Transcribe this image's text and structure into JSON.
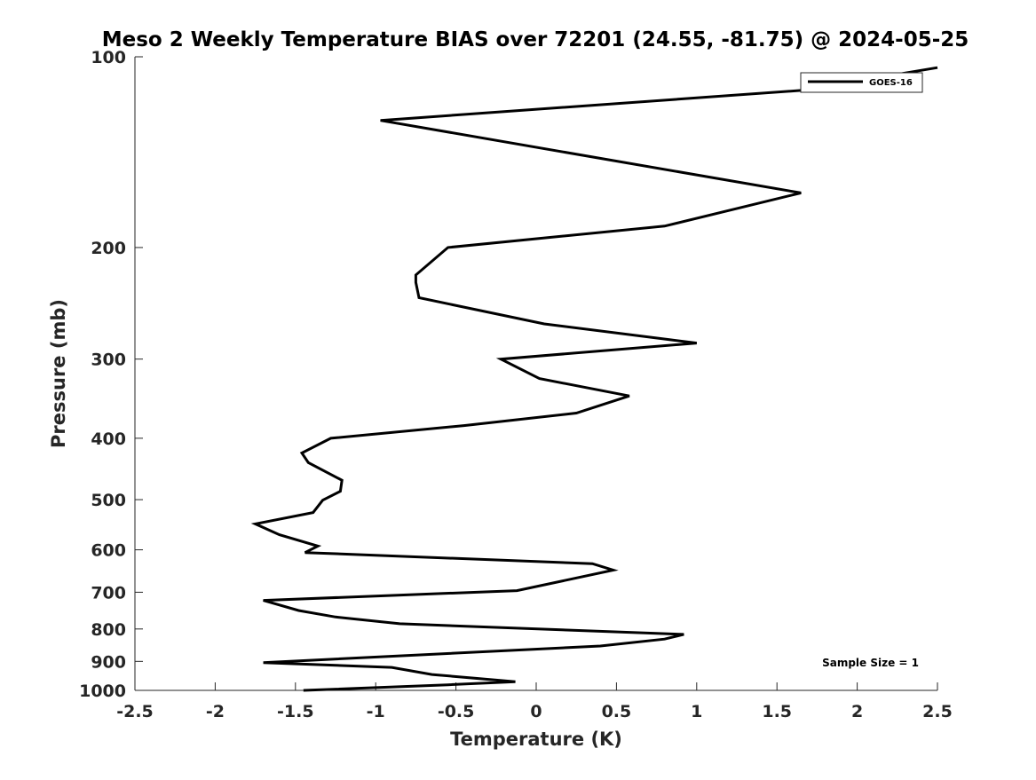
{
  "chart_data": {
    "type": "line",
    "title": "Meso 2 Weekly Temperature BIAS over 72201 (24.55, -81.75) @ 2024-05-25",
    "xlabel": "Temperature (K)",
    "ylabel": "Pressure (mb)",
    "xlim": [
      -2.5,
      2.5
    ],
    "ylim": [
      100,
      1000
    ],
    "y_scale": "log",
    "y_reversed": true,
    "x_ticks": [
      -2.5,
      -2,
      -1.5,
      -1,
      -0.5,
      0,
      0.5,
      1,
      1.5,
      2,
      2.5
    ],
    "x_tick_labels": [
      "-2.5",
      "-2",
      "-1.5",
      "-1",
      "-0.5",
      "0",
      "0.5",
      "1",
      "1.5",
      "2",
      "2.5"
    ],
    "y_ticks": [
      100,
      200,
      300,
      400,
      500,
      600,
      700,
      800,
      900,
      1000
    ],
    "y_tick_labels": [
      "100",
      "200",
      "300",
      "400",
      "500",
      "600",
      "700",
      "800",
      "900",
      "1000"
    ],
    "grid": false,
    "legend": {
      "position": "top-right",
      "entries": [
        "GOES-16"
      ]
    },
    "annotations": [
      "Sample Size = 1"
    ],
    "series": [
      {
        "name": "GOES-16",
        "color": "#000000",
        "points": [
          {
            "x": 2.5,
            "y": 104
          },
          {
            "x": 1.65,
            "y": 113
          },
          {
            "x": -0.97,
            "y": 126
          },
          {
            "x": 1.65,
            "y": 164
          },
          {
            "x": 0.8,
            "y": 185
          },
          {
            "x": -0.55,
            "y": 200
          },
          {
            "x": -0.75,
            "y": 221
          },
          {
            "x": -0.75,
            "y": 225
          },
          {
            "x": -0.75,
            "y": 227
          },
          {
            "x": -0.73,
            "y": 240
          },
          {
            "x": 0.05,
            "y": 264
          },
          {
            "x": 1.0,
            "y": 283
          },
          {
            "x": -0.22,
            "y": 300
          },
          {
            "x": 0.02,
            "y": 322
          },
          {
            "x": 0.58,
            "y": 343
          },
          {
            "x": 0.25,
            "y": 365
          },
          {
            "x": -0.45,
            "y": 382
          },
          {
            "x": -1.28,
            "y": 400
          },
          {
            "x": -1.46,
            "y": 422
          },
          {
            "x": -1.42,
            "y": 437
          },
          {
            "x": -1.21,
            "y": 466
          },
          {
            "x": -1.22,
            "y": 485
          },
          {
            "x": -1.33,
            "y": 501
          },
          {
            "x": -1.39,
            "y": 524
          },
          {
            "x": -1.75,
            "y": 546
          },
          {
            "x": -1.6,
            "y": 568
          },
          {
            "x": -1.36,
            "y": 592
          },
          {
            "x": -1.44,
            "y": 606
          },
          {
            "x": 0.35,
            "y": 631
          },
          {
            "x": 0.48,
            "y": 646
          },
          {
            "x": -0.12,
            "y": 696
          },
          {
            "x": -1.7,
            "y": 721
          },
          {
            "x": -1.48,
            "y": 748
          },
          {
            "x": -1.25,
            "y": 766
          },
          {
            "x": -0.85,
            "y": 785
          },
          {
            "x": 0.92,
            "y": 816
          },
          {
            "x": 0.8,
            "y": 830
          },
          {
            "x": 0.4,
            "y": 851
          },
          {
            "x": -1.7,
            "y": 904
          },
          {
            "x": -0.9,
            "y": 920
          },
          {
            "x": -0.65,
            "y": 944
          },
          {
            "x": -0.13,
            "y": 969
          },
          {
            "x": -0.55,
            "y": 980
          },
          {
            "x": -1.45,
            "y": 1000
          }
        ]
      }
    ]
  }
}
